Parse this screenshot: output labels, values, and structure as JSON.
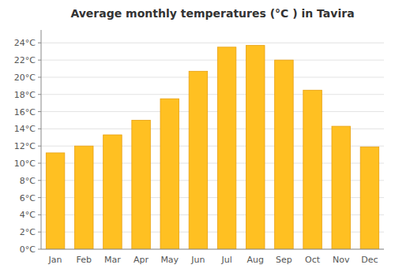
{
  "chart_data": {
    "type": "bar",
    "title": "Average monthly temperatures (°C ) in Tavira",
    "categories": [
      "Jan",
      "Feb",
      "Mar",
      "Apr",
      "May",
      "Jun",
      "Jul",
      "Aug",
      "Sep",
      "Oct",
      "Nov",
      "Dec"
    ],
    "values": [
      11.2,
      12.0,
      13.3,
      15.0,
      17.5,
      20.7,
      23.5,
      23.7,
      22.0,
      18.5,
      14.3,
      11.9
    ],
    "color": "#FFC022",
    "ylim": [
      0,
      25.5
    ],
    "yticks": [
      {
        "value": 0,
        "label": "0°C"
      },
      {
        "value": 2,
        "label": "2°C"
      },
      {
        "value": 4,
        "label": "4°C"
      },
      {
        "value": 6,
        "label": "6°C"
      },
      {
        "value": 8,
        "label": "8°C"
      },
      {
        "value": 10,
        "label": "10°C"
      },
      {
        "value": 12,
        "label": "12°C"
      },
      {
        "value": 14,
        "label": "14°C"
      },
      {
        "value": 16,
        "label": "16°C"
      },
      {
        "value": 18,
        "label": "18°C"
      },
      {
        "value": 20,
        "label": "20°C"
      },
      {
        "value": 22,
        "label": "22°C"
      },
      {
        "value": 24,
        "label": "24°C"
      }
    ],
    "grid": true
  }
}
